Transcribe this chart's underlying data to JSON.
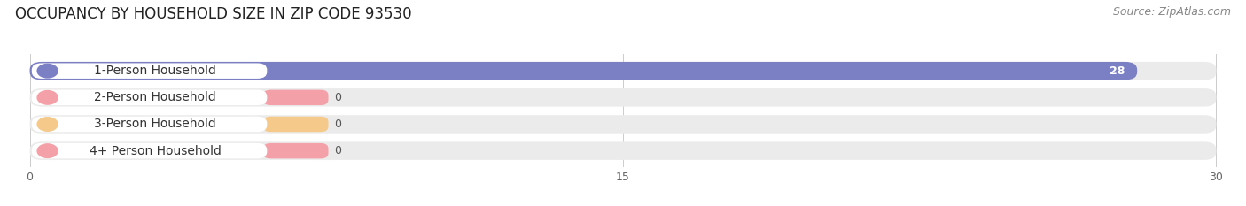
{
  "title": "OCCUPANCY BY HOUSEHOLD SIZE IN ZIP CODE 93530",
  "source": "Source: ZipAtlas.com",
  "categories": [
    "1-Person Household",
    "2-Person Household",
    "3-Person Household",
    "4+ Person Household"
  ],
  "values": [
    28,
    0,
    0,
    0
  ],
  "bar_colors": [
    "#7b7fc4",
    "#f4a0a8",
    "#f5c98a",
    "#f4a0a8"
  ],
  "xlim": [
    0,
    30
  ],
  "xticks": [
    0,
    15,
    30
  ],
  "title_fontsize": 12,
  "source_fontsize": 9,
  "label_fontsize": 10,
  "value_fontsize": 9,
  "background_color": "#ffffff",
  "row_bg_color": "#ebebeb",
  "label_pill_color": "#ffffff",
  "grid_color": "#cccccc"
}
